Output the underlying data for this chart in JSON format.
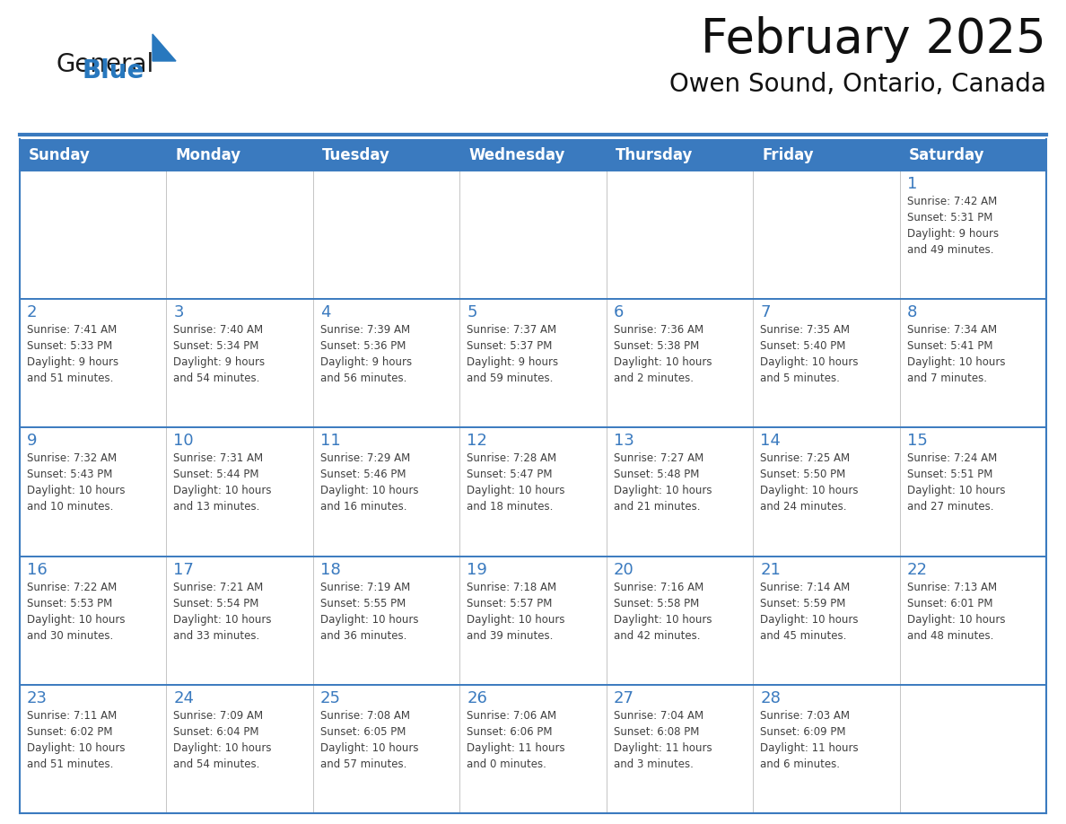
{
  "title": "February 2025",
  "subtitle": "Owen Sound, Ontario, Canada",
  "days_of_week": [
    "Sunday",
    "Monday",
    "Tuesday",
    "Wednesday",
    "Thursday",
    "Friday",
    "Saturday"
  ],
  "header_bg": "#3a7abf",
  "header_text": "#ffffff",
  "cell_bg": "#ffffff",
  "border_color": "#3a7abf",
  "day_number_color": "#3a7abf",
  "text_color": "#404040",
  "logo_general_color": "#1a1a1a",
  "logo_blue_color": "#2878be",
  "weeks": [
    [
      {
        "day": null,
        "info": null
      },
      {
        "day": null,
        "info": null
      },
      {
        "day": null,
        "info": null
      },
      {
        "day": null,
        "info": null
      },
      {
        "day": null,
        "info": null
      },
      {
        "day": null,
        "info": null
      },
      {
        "day": 1,
        "info": "Sunrise: 7:42 AM\nSunset: 5:31 PM\nDaylight: 9 hours\nand 49 minutes."
      }
    ],
    [
      {
        "day": 2,
        "info": "Sunrise: 7:41 AM\nSunset: 5:33 PM\nDaylight: 9 hours\nand 51 minutes."
      },
      {
        "day": 3,
        "info": "Sunrise: 7:40 AM\nSunset: 5:34 PM\nDaylight: 9 hours\nand 54 minutes."
      },
      {
        "day": 4,
        "info": "Sunrise: 7:39 AM\nSunset: 5:36 PM\nDaylight: 9 hours\nand 56 minutes."
      },
      {
        "day": 5,
        "info": "Sunrise: 7:37 AM\nSunset: 5:37 PM\nDaylight: 9 hours\nand 59 minutes."
      },
      {
        "day": 6,
        "info": "Sunrise: 7:36 AM\nSunset: 5:38 PM\nDaylight: 10 hours\nand 2 minutes."
      },
      {
        "day": 7,
        "info": "Sunrise: 7:35 AM\nSunset: 5:40 PM\nDaylight: 10 hours\nand 5 minutes."
      },
      {
        "day": 8,
        "info": "Sunrise: 7:34 AM\nSunset: 5:41 PM\nDaylight: 10 hours\nand 7 minutes."
      }
    ],
    [
      {
        "day": 9,
        "info": "Sunrise: 7:32 AM\nSunset: 5:43 PM\nDaylight: 10 hours\nand 10 minutes."
      },
      {
        "day": 10,
        "info": "Sunrise: 7:31 AM\nSunset: 5:44 PM\nDaylight: 10 hours\nand 13 minutes."
      },
      {
        "day": 11,
        "info": "Sunrise: 7:29 AM\nSunset: 5:46 PM\nDaylight: 10 hours\nand 16 minutes."
      },
      {
        "day": 12,
        "info": "Sunrise: 7:28 AM\nSunset: 5:47 PM\nDaylight: 10 hours\nand 18 minutes."
      },
      {
        "day": 13,
        "info": "Sunrise: 7:27 AM\nSunset: 5:48 PM\nDaylight: 10 hours\nand 21 minutes."
      },
      {
        "day": 14,
        "info": "Sunrise: 7:25 AM\nSunset: 5:50 PM\nDaylight: 10 hours\nand 24 minutes."
      },
      {
        "day": 15,
        "info": "Sunrise: 7:24 AM\nSunset: 5:51 PM\nDaylight: 10 hours\nand 27 minutes."
      }
    ],
    [
      {
        "day": 16,
        "info": "Sunrise: 7:22 AM\nSunset: 5:53 PM\nDaylight: 10 hours\nand 30 minutes."
      },
      {
        "day": 17,
        "info": "Sunrise: 7:21 AM\nSunset: 5:54 PM\nDaylight: 10 hours\nand 33 minutes."
      },
      {
        "day": 18,
        "info": "Sunrise: 7:19 AM\nSunset: 5:55 PM\nDaylight: 10 hours\nand 36 minutes."
      },
      {
        "day": 19,
        "info": "Sunrise: 7:18 AM\nSunset: 5:57 PM\nDaylight: 10 hours\nand 39 minutes."
      },
      {
        "day": 20,
        "info": "Sunrise: 7:16 AM\nSunset: 5:58 PM\nDaylight: 10 hours\nand 42 minutes."
      },
      {
        "day": 21,
        "info": "Sunrise: 7:14 AM\nSunset: 5:59 PM\nDaylight: 10 hours\nand 45 minutes."
      },
      {
        "day": 22,
        "info": "Sunrise: 7:13 AM\nSunset: 6:01 PM\nDaylight: 10 hours\nand 48 minutes."
      }
    ],
    [
      {
        "day": 23,
        "info": "Sunrise: 7:11 AM\nSunset: 6:02 PM\nDaylight: 10 hours\nand 51 minutes."
      },
      {
        "day": 24,
        "info": "Sunrise: 7:09 AM\nSunset: 6:04 PM\nDaylight: 10 hours\nand 54 minutes."
      },
      {
        "day": 25,
        "info": "Sunrise: 7:08 AM\nSunset: 6:05 PM\nDaylight: 10 hours\nand 57 minutes."
      },
      {
        "day": 26,
        "info": "Sunrise: 7:06 AM\nSunset: 6:06 PM\nDaylight: 11 hours\nand 0 minutes."
      },
      {
        "day": 27,
        "info": "Sunrise: 7:04 AM\nSunset: 6:08 PM\nDaylight: 11 hours\nand 3 minutes."
      },
      {
        "day": 28,
        "info": "Sunrise: 7:03 AM\nSunset: 6:09 PM\nDaylight: 11 hours\nand 6 minutes."
      },
      {
        "day": null,
        "info": null
      }
    ]
  ],
  "fig_width": 11.88,
  "fig_height": 9.18,
  "dpi": 100
}
